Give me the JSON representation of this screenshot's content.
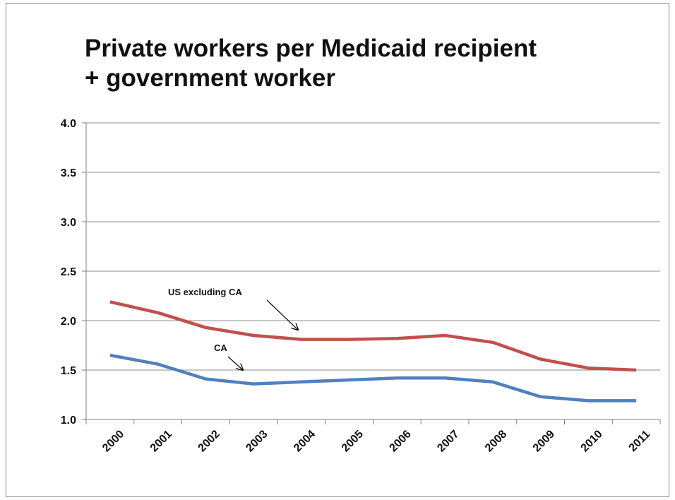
{
  "chart_data": {
    "type": "line",
    "title_line1": "Private workers per Medicaid recipient",
    "title_line2": "+ government worker",
    "xlabel": "",
    "ylabel": "",
    "ylim": [
      1.0,
      4.0
    ],
    "y_ticks": [
      "1.0",
      "1.5",
      "2.0",
      "2.5",
      "3.0",
      "3.5",
      "4.0"
    ],
    "grid": true,
    "categories": [
      "2000",
      "2001",
      "2002",
      "2003",
      "2004",
      "2005",
      "2006",
      "2007",
      "2008",
      "2009",
      "2010",
      "2011"
    ],
    "series": [
      {
        "name": "US excluding CA",
        "color": "#c0504d",
        "values": [
          2.19,
          2.08,
          1.93,
          1.85,
          1.81,
          1.81,
          1.82,
          1.85,
          1.78,
          1.61,
          1.52,
          1.5
        ]
      },
      {
        "name": "CA",
        "color": "#4f81bd",
        "values": [
          1.65,
          1.56,
          1.41,
          1.36,
          1.38,
          1.4,
          1.42,
          1.42,
          1.38,
          1.23,
          1.19,
          1.19
        ]
      }
    ],
    "annotations": [
      {
        "text": "US excluding CA",
        "series": 0
      },
      {
        "text": "CA",
        "series": 1
      }
    ]
  }
}
